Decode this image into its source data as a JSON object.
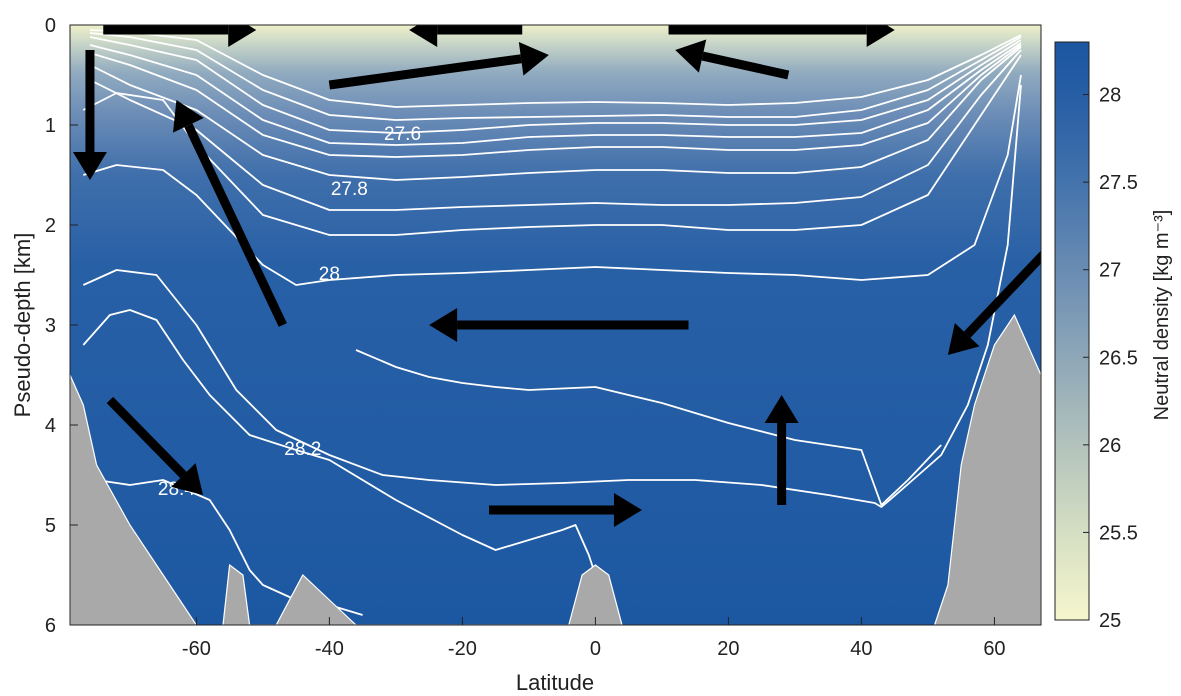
{
  "chart_data": {
    "type": "heatmap",
    "title": "",
    "xlabel": "Latitude",
    "ylabel": "Pseudo-depth [km]",
    "xlim": [
      -79,
      67
    ],
    "ylim": [
      6,
      0
    ],
    "x_ticks": [
      -60,
      -40,
      -20,
      0,
      20,
      40,
      60
    ],
    "y_ticks": [
      0,
      1,
      2,
      3,
      4,
      5,
      6
    ],
    "grid": false,
    "colorbar": {
      "label": "Neutral density [kg m⁻³]",
      "range": [
        25,
        28.3
      ],
      "ticks": [
        25,
        25.5,
        26,
        26.5,
        27,
        27.5,
        28
      ],
      "color_low": "#f3f4cc",
      "color_high": "#1a55a0"
    },
    "contour_labels": [
      {
        "text": "27.6",
        "lat": -29,
        "depth": 1.15
      },
      {
        "text": "27.8",
        "lat": -37,
        "depth": 1.7
      },
      {
        "text": "28",
        "lat": -40,
        "depth": 2.55
      },
      {
        "text": "28.2",
        "lat": -44,
        "depth": 4.3
      },
      {
        "text": "28.4",
        "lat": -63,
        "depth": 4.7
      }
    ],
    "contours": [
      {
        "level": "upper-1",
        "points": [
          [
            -76,
            0.05
          ],
          [
            -70,
            0.07
          ],
          [
            -60,
            0.15
          ],
          [
            -50,
            0.5
          ],
          [
            -40,
            0.75
          ],
          [
            -30,
            0.82
          ],
          [
            -20,
            0.8
          ],
          [
            -10,
            0.78
          ],
          [
            0,
            0.77
          ],
          [
            10,
            0.78
          ],
          [
            20,
            0.8
          ],
          [
            30,
            0.78
          ],
          [
            40,
            0.72
          ],
          [
            50,
            0.55
          ],
          [
            58,
            0.3
          ],
          [
            64,
            0.1
          ]
        ]
      },
      {
        "level": "upper-2",
        "points": [
          [
            -76,
            0.08
          ],
          [
            -70,
            0.12
          ],
          [
            -60,
            0.25
          ],
          [
            -50,
            0.65
          ],
          [
            -40,
            0.9
          ],
          [
            -30,
            0.95
          ],
          [
            -20,
            0.93
          ],
          [
            -10,
            0.92
          ],
          [
            0,
            0.91
          ],
          [
            10,
            0.9
          ],
          [
            20,
            0.92
          ],
          [
            30,
            0.92
          ],
          [
            40,
            0.85
          ],
          [
            50,
            0.65
          ],
          [
            58,
            0.35
          ],
          [
            64,
            0.12
          ]
        ]
      },
      {
        "level": "27.6",
        "points": [
          [
            -76,
            0.12
          ],
          [
            -70,
            0.2
          ],
          [
            -60,
            0.35
          ],
          [
            -50,
            0.8
          ],
          [
            -40,
            1.05
          ],
          [
            -30,
            1.08
          ],
          [
            -20,
            1.05
          ],
          [
            -10,
            1.0
          ],
          [
            0,
            0.98
          ],
          [
            10,
            0.98
          ],
          [
            20,
            1.0
          ],
          [
            30,
            1.0
          ],
          [
            40,
            0.95
          ],
          [
            50,
            0.75
          ],
          [
            58,
            0.4
          ],
          [
            64,
            0.15
          ]
        ]
      },
      {
        "level": "unlabeled-a",
        "points": [
          [
            -76,
            0.2
          ],
          [
            -70,
            0.3
          ],
          [
            -60,
            0.5
          ],
          [
            -50,
            0.95
          ],
          [
            -40,
            1.18
          ],
          [
            -30,
            1.2
          ],
          [
            -20,
            1.18
          ],
          [
            -10,
            1.12
          ],
          [
            0,
            1.1
          ],
          [
            10,
            1.1
          ],
          [
            20,
            1.12
          ],
          [
            30,
            1.12
          ],
          [
            40,
            1.08
          ],
          [
            50,
            0.85
          ],
          [
            58,
            0.45
          ],
          [
            64,
            0.18
          ]
        ]
      },
      {
        "level": "unlabeled-b",
        "points": [
          [
            -76,
            0.28
          ],
          [
            -70,
            0.4
          ],
          [
            -60,
            0.65
          ],
          [
            -50,
            1.1
          ],
          [
            -40,
            1.3
          ],
          [
            -30,
            1.32
          ],
          [
            -20,
            1.3
          ],
          [
            -10,
            1.25
          ],
          [
            0,
            1.22
          ],
          [
            10,
            1.22
          ],
          [
            20,
            1.25
          ],
          [
            30,
            1.25
          ],
          [
            40,
            1.2
          ],
          [
            50,
            0.98
          ],
          [
            58,
            0.5
          ],
          [
            64,
            0.2
          ]
        ]
      },
      {
        "level": "27.8",
        "points": [
          [
            -76,
            0.4
          ],
          [
            -70,
            0.6
          ],
          [
            -60,
            0.85
          ],
          [
            -50,
            1.3
          ],
          [
            -40,
            1.5
          ],
          [
            -30,
            1.55
          ],
          [
            -20,
            1.52
          ],
          [
            -10,
            1.48
          ],
          [
            0,
            1.45
          ],
          [
            10,
            1.45
          ],
          [
            20,
            1.48
          ],
          [
            30,
            1.48
          ],
          [
            40,
            1.42
          ],
          [
            50,
            1.15
          ],
          [
            58,
            0.55
          ],
          [
            64,
            0.22
          ]
        ]
      },
      {
        "level": "unlabeled-c",
        "points": [
          [
            -76,
            0.55
          ],
          [
            -70,
            0.75
          ],
          [
            -60,
            1.05
          ],
          [
            -50,
            1.6
          ],
          [
            -40,
            1.85
          ],
          [
            -30,
            1.85
          ],
          [
            -20,
            1.82
          ],
          [
            -10,
            1.8
          ],
          [
            0,
            1.78
          ],
          [
            10,
            1.8
          ],
          [
            20,
            1.8
          ],
          [
            30,
            1.78
          ],
          [
            40,
            1.72
          ],
          [
            50,
            1.4
          ],
          [
            58,
            0.7
          ],
          [
            64,
            0.25
          ]
        ]
      },
      {
        "level": "unlabeled-d",
        "points": [
          [
            -77,
            0.85
          ],
          [
            -72,
            0.68
          ],
          [
            -65,
            0.75
          ],
          [
            -60,
            1.2
          ],
          [
            -50,
            1.9
          ],
          [
            -40,
            2.1
          ],
          [
            -30,
            2.1
          ],
          [
            -20,
            2.05
          ],
          [
            -10,
            2.02
          ],
          [
            0,
            2.0
          ],
          [
            10,
            2.0
          ],
          [
            20,
            2.05
          ],
          [
            30,
            2.05
          ],
          [
            40,
            2.0
          ],
          [
            50,
            1.7
          ],
          [
            58,
            0.9
          ],
          [
            64,
            0.3
          ]
        ]
      },
      {
        "level": "28",
        "points": [
          [
            -77,
            1.5
          ],
          [
            -72,
            1.4
          ],
          [
            -65,
            1.45
          ],
          [
            -60,
            1.7
          ],
          [
            -55,
            2.05
          ],
          [
            -50,
            2.4
          ],
          [
            -45,
            2.6
          ],
          [
            -40,
            2.55
          ],
          [
            -30,
            2.5
          ],
          [
            -20,
            2.48
          ],
          [
            -10,
            2.45
          ],
          [
            0,
            2.42
          ],
          [
            10,
            2.45
          ],
          [
            20,
            2.48
          ],
          [
            30,
            2.5
          ],
          [
            40,
            2.55
          ],
          [
            50,
            2.5
          ],
          [
            57,
            2.2
          ],
          [
            62,
            1.3
          ],
          [
            64,
            0.5
          ]
        ]
      },
      {
        "level": "unlabeled-e",
        "points": [
          [
            -77,
            3.2
          ],
          [
            -73,
            2.9
          ],
          [
            -70,
            2.85
          ],
          [
            -66,
            2.95
          ],
          [
            -62,
            3.35
          ],
          [
            -58,
            3.7
          ],
          [
            -52,
            4.1
          ],
          [
            -45,
            4.25
          ],
          [
            -40,
            4.35
          ],
          [
            -30,
            4.75
          ],
          [
            -20,
            5.1
          ],
          [
            -15,
            5.25
          ],
          [
            -10,
            5.15
          ],
          [
            -5,
            5.05
          ],
          [
            -3,
            5.0
          ],
          [
            -1,
            5.3
          ],
          [
            0,
            5.5
          ]
        ]
      },
      {
        "level": "28.2",
        "points": [
          [
            -77,
            2.6
          ],
          [
            -72,
            2.45
          ],
          [
            -66,
            2.5
          ],
          [
            -60,
            3.0
          ],
          [
            -54,
            3.65
          ],
          [
            -48,
            4.05
          ],
          [
            -40,
            4.3
          ],
          [
            -32,
            4.5
          ],
          [
            -25,
            4.55
          ],
          [
            -15,
            4.6
          ],
          [
            -5,
            4.58
          ],
          [
            5,
            4.55
          ],
          [
            15,
            4.55
          ],
          [
            25,
            4.6
          ],
          [
            35,
            4.7
          ],
          [
            42,
            4.78
          ],
          [
            43,
            4.82
          ],
          [
            46,
            4.65
          ],
          [
            52,
            4.3
          ],
          [
            56,
            3.8
          ],
          [
            59,
            3.2
          ],
          [
            62,
            2.2
          ],
          [
            64,
            0.6
          ]
        ]
      },
      {
        "level": "28.4",
        "points": [
          [
            -75,
            4.55
          ],
          [
            -70,
            4.6
          ],
          [
            -65,
            4.55
          ],
          [
            -58,
            4.75
          ],
          [
            -55,
            5.05
          ],
          [
            -52,
            5.45
          ],
          [
            -50,
            5.6
          ],
          [
            -45,
            5.75
          ],
          [
            -40,
            5.8
          ],
          [
            -35,
            5.9
          ]
        ]
      },
      {
        "level": "unlabeled-f",
        "points": [
          [
            -36,
            3.25
          ],
          [
            -30,
            3.42
          ],
          [
            -25,
            3.52
          ],
          [
            -20,
            3.58
          ],
          [
            -15,
            3.62
          ],
          [
            -10,
            3.65
          ],
          [
            0,
            3.62
          ],
          [
            10,
            3.78
          ],
          [
            20,
            3.98
          ],
          [
            30,
            4.15
          ],
          [
            40,
            4.25
          ],
          [
            43,
            4.8
          ],
          [
            47,
            4.55
          ],
          [
            52,
            4.2
          ]
        ]
      }
    ],
    "bathymetry_left": [
      [
        -79,
        3.5
      ],
      [
        -77,
        3.8
      ],
      [
        -75,
        4.4
      ],
      [
        -70,
        5.0
      ],
      [
        -66,
        5.4
      ],
      [
        -62,
        5.8
      ],
      [
        -60,
        6.0
      ]
    ],
    "bathymetry_right": [
      [
        51,
        6.0
      ],
      [
        53,
        5.6
      ],
      [
        55,
        4.4
      ],
      [
        57,
        3.8
      ],
      [
        60,
        3.2
      ],
      [
        63,
        2.9
      ],
      [
        65,
        3.2
      ],
      [
        67,
        3.5
      ]
    ],
    "bathymetry_ridge": [
      [
        -56,
        6.0
      ],
      [
        -55,
        5.4
      ],
      [
        -53,
        5.5
      ],
      [
        -52,
        6.0
      ],
      [
        -48,
        6.0
      ],
      [
        -44,
        5.5
      ],
      [
        -40,
        5.75
      ],
      [
        -36,
        6.0
      ],
      [
        -4,
        6.0
      ],
      [
        -2,
        5.5
      ],
      [
        0,
        5.4
      ],
      [
        2,
        5.5
      ],
      [
        4,
        6.0
      ]
    ],
    "arrows": [
      {
        "from": [
          -74,
          0.05
        ],
        "to": [
          -51,
          0.05
        ]
      },
      {
        "from": [
          -11,
          0.05
        ],
        "to": [
          -28,
          0.05
        ]
      },
      {
        "from": [
          11,
          0.05
        ],
        "to": [
          45,
          0.05
        ]
      },
      {
        "from": [
          -40,
          0.6
        ],
        "to": [
          -7,
          0.3
        ]
      },
      {
        "from": [
          29,
          0.5
        ],
        "to": [
          12,
          0.25
        ]
      },
      {
        "from": [
          -76,
          0.25
        ],
        "to": [
          -76,
          1.55
        ]
      },
      {
        "from": [
          -47,
          3.0
        ],
        "to": [
          -63,
          0.75
        ]
      },
      {
        "from": [
          14,
          3.0
        ],
        "to": [
          -25,
          3.0
        ]
      },
      {
        "from": [
          -73,
          3.75
        ],
        "to": [
          -59,
          4.7
        ]
      },
      {
        "from": [
          -16,
          4.85
        ],
        "to": [
          7,
          4.85
        ]
      },
      {
        "from": [
          28,
          4.8
        ],
        "to": [
          28,
          3.7
        ]
      },
      {
        "from": [
          68,
          2.25
        ],
        "to": [
          53,
          3.3
        ]
      }
    ]
  }
}
